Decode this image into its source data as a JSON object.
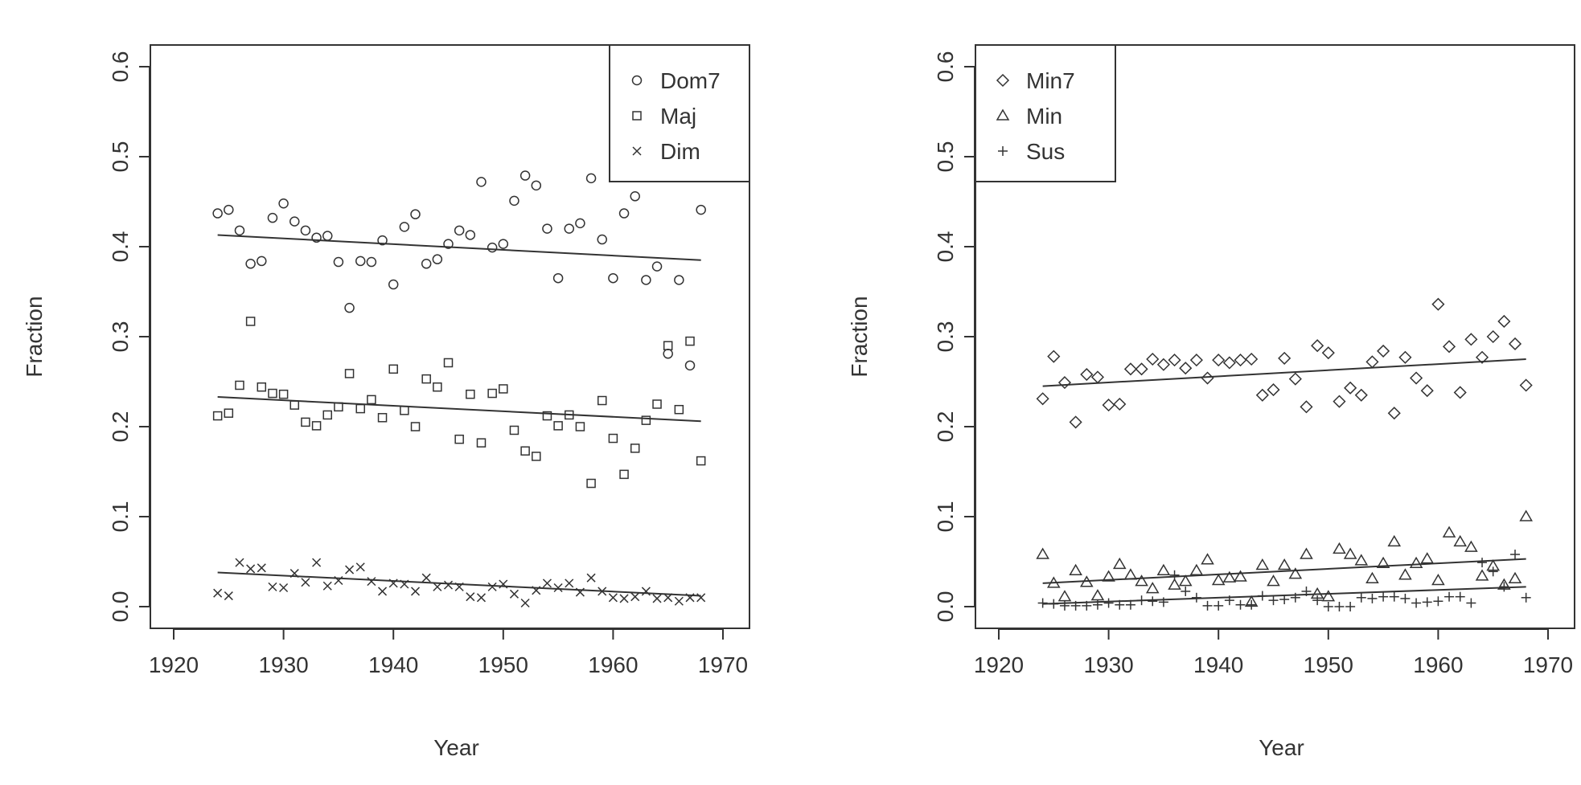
{
  "chart_data": [
    {
      "type": "scatter",
      "xlabel": "Year",
      "ylabel": "Fraction",
      "xlim": [
        1920,
        1970
      ],
      "ylim": [
        0.0,
        0.6
      ],
      "x_ticks": [
        "1920",
        "1930",
        "1940",
        "1950",
        "1960",
        "1970"
      ],
      "y_ticks": [
        "0.0",
        "0.1",
        "0.2",
        "0.3",
        "0.4",
        "0.5",
        "0.6"
      ],
      "legend_position": "top-right",
      "series": [
        {
          "name": "Dom7",
          "marker": "circle",
          "x": [
            1924,
            1925,
            1926,
            1927,
            1928,
            1929,
            1930,
            1931,
            1932,
            1933,
            1934,
            1935,
            1936,
            1937,
            1938,
            1939,
            1940,
            1941,
            1942,
            1943,
            1944,
            1945,
            1946,
            1947,
            1948,
            1949,
            1950,
            1951,
            1952,
            1953,
            1954,
            1955,
            1956,
            1957,
            1958,
            1959,
            1960,
            1961,
            1962,
            1963,
            1964,
            1965,
            1966,
            1967,
            1968
          ],
          "y": [
            0.437,
            0.441,
            0.418,
            0.381,
            0.384,
            0.432,
            0.448,
            0.428,
            0.418,
            0.41,
            0.412,
            0.383,
            0.332,
            0.384,
            0.383,
            0.407,
            0.358,
            0.422,
            0.436,
            0.381,
            0.386,
            0.403,
            0.418,
            0.413,
            0.472,
            0.399,
            0.403,
            0.451,
            0.479,
            0.468,
            0.42,
            0.365,
            0.42,
            0.426,
            0.476,
            0.408,
            0.365,
            0.437,
            0.456,
            0.363,
            0.378,
            0.281,
            0.363,
            0.268,
            0.441
          ],
          "trend": [
            0.413,
            0.385
          ]
        },
        {
          "name": "Maj",
          "marker": "square",
          "x": [
            1924,
            1925,
            1926,
            1927,
            1928,
            1929,
            1930,
            1931,
            1932,
            1933,
            1934,
            1935,
            1936,
            1937,
            1938,
            1939,
            1940,
            1941,
            1942,
            1943,
            1944,
            1945,
            1946,
            1947,
            1948,
            1949,
            1950,
            1951,
            1952,
            1953,
            1954,
            1955,
            1956,
            1957,
            1958,
            1959,
            1960,
            1961,
            1962,
            1963,
            1964,
            1965,
            1966,
            1967,
            1968
          ],
          "y": [
            0.212,
            0.215,
            0.246,
            0.317,
            0.244,
            0.237,
            0.236,
            0.224,
            0.205,
            0.201,
            0.213,
            0.222,
            0.259,
            0.22,
            0.23,
            0.21,
            0.264,
            0.218,
            0.2,
            0.253,
            0.244,
            0.271,
            0.186,
            0.236,
            0.182,
            0.237,
            0.242,
            0.196,
            0.173,
            0.167,
            0.212,
            0.201,
            0.213,
            0.2,
            0.137,
            0.229,
            0.187,
            0.147,
            0.176,
            0.207,
            0.225,
            0.29,
            0.219,
            0.295,
            0.162
          ],
          "trend": [
            0.233,
            0.206
          ]
        },
        {
          "name": "Dim",
          "marker": "cross",
          "x": [
            1924,
            1925,
            1926,
            1927,
            1928,
            1929,
            1930,
            1931,
            1932,
            1933,
            1934,
            1935,
            1936,
            1937,
            1938,
            1939,
            1940,
            1941,
            1942,
            1943,
            1944,
            1945,
            1946,
            1947,
            1948,
            1949,
            1950,
            1951,
            1952,
            1953,
            1954,
            1955,
            1956,
            1957,
            1958,
            1959,
            1960,
            1961,
            1962,
            1963,
            1964,
            1965,
            1966,
            1967,
            1968
          ],
          "y": [
            0.015,
            0.012,
            0.049,
            0.042,
            0.043,
            0.022,
            0.021,
            0.037,
            0.027,
            0.049,
            0.023,
            0.029,
            0.041,
            0.044,
            0.028,
            0.017,
            0.026,
            0.025,
            0.017,
            0.032,
            0.022,
            0.024,
            0.022,
            0.011,
            0.01,
            0.022,
            0.025,
            0.014,
            0.004,
            0.018,
            0.026,
            0.021,
            0.026,
            0.016,
            0.032,
            0.017,
            0.01,
            0.009,
            0.011,
            0.017,
            0.009,
            0.01,
            0.006,
            0.01,
            0.01
          ],
          "trend": [
            0.038,
            0.012
          ]
        }
      ]
    },
    {
      "type": "scatter",
      "xlabel": "Year",
      "ylabel": "Fraction",
      "xlim": [
        1920,
        1970
      ],
      "ylim": [
        0.0,
        0.6
      ],
      "x_ticks": [
        "1920",
        "1930",
        "1940",
        "1950",
        "1960",
        "1970"
      ],
      "y_ticks": [
        "0.0",
        "0.1",
        "0.2",
        "0.3",
        "0.4",
        "0.5",
        "0.6"
      ],
      "legend_position": "top-left",
      "series": [
        {
          "name": "Min7",
          "marker": "diamond",
          "x": [
            1924,
            1925,
            1926,
            1927,
            1928,
            1929,
            1930,
            1931,
            1932,
            1933,
            1934,
            1935,
            1936,
            1937,
            1938,
            1939,
            1940,
            1941,
            1942,
            1943,
            1944,
            1945,
            1946,
            1947,
            1948,
            1949,
            1950,
            1951,
            1952,
            1953,
            1954,
            1955,
            1956,
            1957,
            1958,
            1959,
            1960,
            1961,
            1962,
            1963,
            1964,
            1965,
            1966,
            1967,
            1968
          ],
          "y": [
            0.231,
            0.278,
            0.249,
            0.205,
            0.258,
            0.255,
            0.224,
            0.225,
            0.264,
            0.264,
            0.275,
            0.269,
            0.274,
            0.265,
            0.274,
            0.254,
            0.274,
            0.271,
            0.274,
            0.275,
            0.235,
            0.241,
            0.276,
            0.253,
            0.222,
            0.29,
            0.282,
            0.228,
            0.243,
            0.235,
            0.272,
            0.284,
            0.215,
            0.277,
            0.254,
            0.24,
            0.336,
            0.289,
            0.238,
            0.297,
            0.277,
            0.3,
            0.317,
            0.292,
            0.246
          ],
          "trend": [
            0.245,
            0.275
          ]
        },
        {
          "name": "Min",
          "marker": "triangle",
          "x": [
            1924,
            1925,
            1926,
            1927,
            1928,
            1929,
            1930,
            1931,
            1932,
            1933,
            1934,
            1935,
            1936,
            1937,
            1938,
            1939,
            1940,
            1941,
            1942,
            1943,
            1944,
            1945,
            1946,
            1947,
            1948,
            1949,
            1950,
            1951,
            1952,
            1953,
            1954,
            1955,
            1956,
            1957,
            1958,
            1959,
            1960,
            1961,
            1962,
            1963,
            1964,
            1965,
            1966,
            1967,
            1968
          ],
          "y": [
            0.058,
            0.026,
            0.011,
            0.04,
            0.027,
            0.012,
            0.033,
            0.047,
            0.035,
            0.028,
            0.02,
            0.04,
            0.024,
            0.028,
            0.04,
            0.052,
            0.029,
            0.032,
            0.033,
            0.005,
            0.046,
            0.028,
            0.046,
            0.036,
            0.058,
            0.014,
            0.011,
            0.064,
            0.058,
            0.051,
            0.031,
            0.048,
            0.072,
            0.035,
            0.048,
            0.053,
            0.029,
            0.082,
            0.072,
            0.066,
            0.034,
            0.045,
            0.024,
            0.031,
            0.1
          ],
          "trend": [
            0.026,
            0.053
          ]
        },
        {
          "name": "Sus",
          "marker": "plus",
          "x": [
            1924,
            1925,
            1926,
            1927,
            1928,
            1929,
            1930,
            1931,
            1932,
            1933,
            1934,
            1935,
            1936,
            1937,
            1938,
            1939,
            1940,
            1941,
            1942,
            1943,
            1944,
            1945,
            1946,
            1947,
            1948,
            1949,
            1950,
            1951,
            1952,
            1953,
            1954,
            1955,
            1956,
            1957,
            1958,
            1959,
            1960,
            1961,
            1962,
            1963,
            1964,
            1965,
            1966,
            1967,
            1968
          ],
          "y": [
            0.004,
            0.003,
            0.001,
            0.001,
            0.001,
            0.002,
            0.004,
            0.002,
            0.002,
            0.007,
            0.006,
            0.005,
            0.035,
            0.017,
            0.01,
            0.001,
            0.001,
            0.007,
            0.002,
            0.002,
            0.012,
            0.007,
            0.008,
            0.01,
            0.017,
            0.007,
            0.0,
            0.0,
            0.0,
            0.01,
            0.009,
            0.011,
            0.011,
            0.009,
            0.004,
            0.005,
            0.006,
            0.011,
            0.011,
            0.004,
            0.049,
            0.039,
            0.022,
            0.058,
            0.01
          ],
          "trend": [
            0.003,
            0.022
          ]
        }
      ]
    }
  ]
}
